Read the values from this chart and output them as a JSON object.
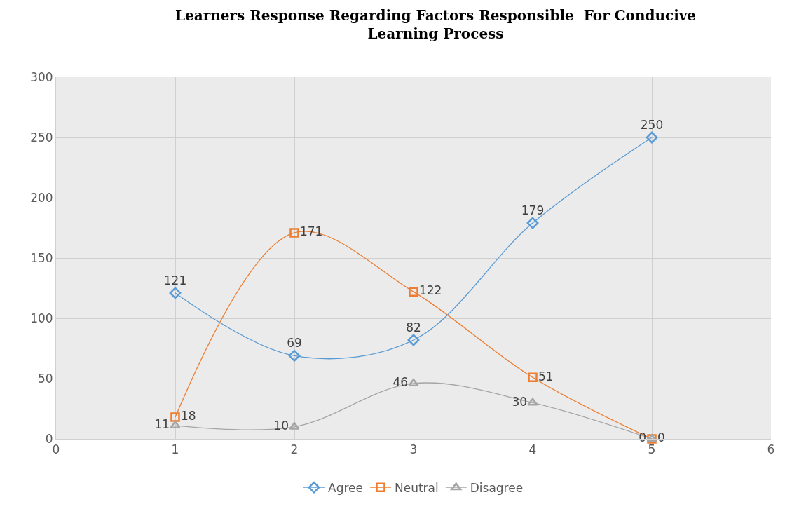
{
  "chart_data": {
    "type": "line",
    "title": "Learners Response Regarding Factors Responsible  For Conducive Learning Process",
    "x": [
      1,
      2,
      3,
      4,
      5
    ],
    "series": [
      {
        "name": "Agree",
        "color": "#5b9bd5",
        "values": [
          121,
          69,
          82,
          179,
          250
        ],
        "marker": "diamond"
      },
      {
        "name": "Neutral",
        "color": "#ed7d31",
        "values": [
          18,
          171,
          122,
          51,
          0
        ],
        "marker": "square"
      },
      {
        "name": "Disagree",
        "color": "#a5a5a5",
        "values": [
          11,
          10,
          46,
          30,
          0
        ],
        "marker": "triangle"
      }
    ],
    "xlim": [
      0,
      6
    ],
    "xticks": [
      0,
      1,
      2,
      3,
      4,
      5,
      6
    ],
    "ylim": [
      0,
      300
    ],
    "yticks": [
      0,
      50,
      100,
      150,
      200,
      250,
      300
    ],
    "grid": true,
    "legend": "bottom",
    "data_labels": true,
    "line_style": "solid"
  }
}
